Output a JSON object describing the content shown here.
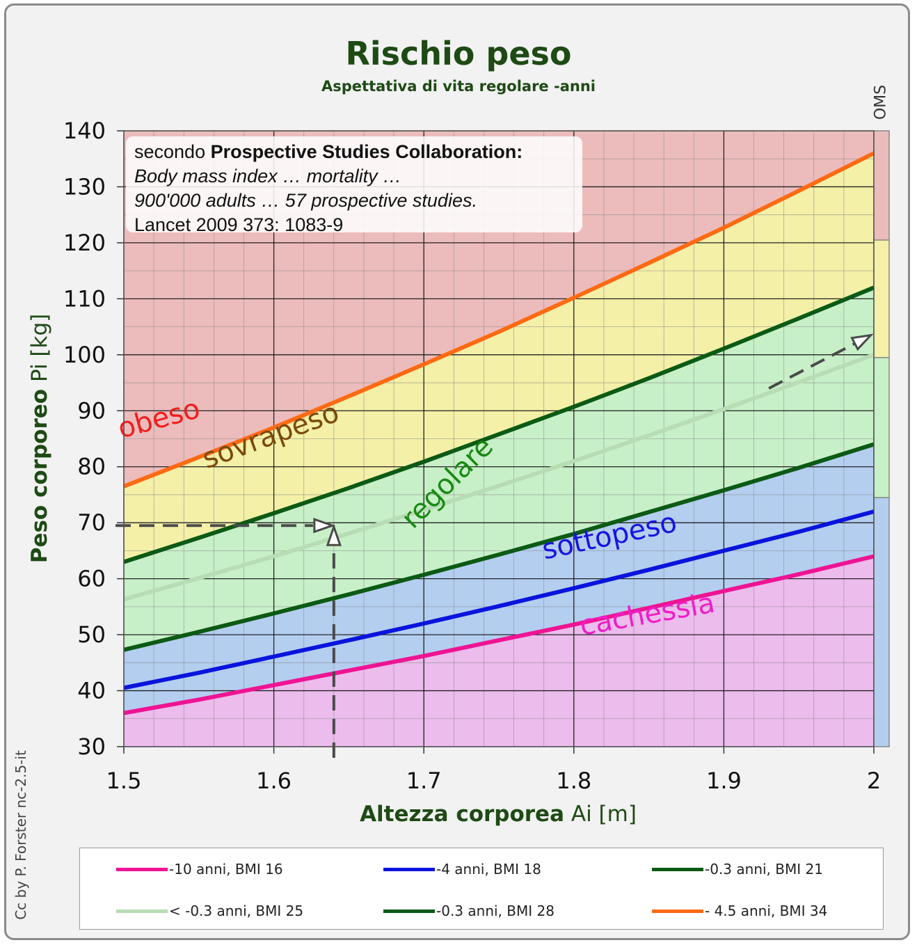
{
  "title": "Rischio peso",
  "subtitle": "Aspettativa di vita regolare -anni",
  "y_axis": {
    "bold": "Peso corporeo",
    "light": "Pi [kg]"
  },
  "x_axis": {
    "bold": "Altezza corporea",
    "light": "Ai [m]"
  },
  "credit": "Cc by P. Forster nc-2.5-it",
  "oms_label": "OMS",
  "source": {
    "prefix": "secondo ",
    "bold": "Prospective Studies Collaboration:",
    "line2": "Body mass index … mortality …",
    "line3": "900'000 adults … 57 prospective studies.",
    "line4": "Lancet 2009 373: 1083-9"
  },
  "legend": [
    {
      "label": "-10 anni, BMI 16",
      "color": "#ee1493"
    },
    {
      "label": "-4 anni, BMI 18",
      "color": "#0a14dc"
    },
    {
      "label": "-0.3 anni, BMI 21",
      "color": "#0c5a14"
    },
    {
      "label": "< -0.3 anni, BMI 25",
      "color": "#b8dcb4"
    },
    {
      "label": "-0.3 anni, BMI 28",
      "color": "#0c5a14"
    },
    {
      "label": "- 4.5 anni, BMI 34",
      "color": "#ff6a14"
    }
  ],
  "chart_data": {
    "type": "line",
    "xlim": [
      1.5,
      2.0
    ],
    "ylim": [
      30,
      140
    ],
    "x_ticks": [
      "1.5",
      "1.6",
      "1.7",
      "1.8",
      "1.9",
      "2"
    ],
    "y_ticks": [
      "30",
      "40",
      "50",
      "60",
      "70",
      "80",
      "90",
      "100",
      "110",
      "120",
      "130",
      "140"
    ],
    "grid": true,
    "x": [
      1.5,
      1.55,
      1.6,
      1.65,
      1.7,
      1.75,
      1.8,
      1.85,
      1.9,
      1.95,
      2.0
    ],
    "series": [
      {
        "name": "-10 anni, BMI 16",
        "bmi": 16,
        "color": "#ee1493",
        "values": [
          36.0,
          38.4,
          41.0,
          43.6,
          46.2,
          49.0,
          51.8,
          54.8,
          57.8,
          60.8,
          64.0
        ]
      },
      {
        "name": "-4 anni, BMI 18",
        "bmi": 18,
        "color": "#0a14dc",
        "values": [
          40.5,
          43.2,
          46.1,
          49.0,
          52.0,
          55.1,
          58.3,
          61.6,
          65.0,
          68.4,
          72.0
        ]
      },
      {
        "name": "-0.3 anni, BMI 21",
        "bmi": 21,
        "color": "#0c5a14",
        "values": [
          47.3,
          50.5,
          53.8,
          57.2,
          60.7,
          64.3,
          68.0,
          71.9,
          75.8,
          79.8,
          84.0
        ]
      },
      {
        "name": "< -0.3 anni, BMI 25",
        "bmi": 25,
        "color": "#b8dcb4",
        "values": [
          56.3,
          60.1,
          64.0,
          68.1,
          72.3,
          76.6,
          81.0,
          85.6,
          90.3,
          95.1,
          100.0
        ]
      },
      {
        "name": "-0.3 anni, BMI 28",
        "bmi": 28,
        "color": "#0c5a14",
        "values": [
          63.0,
          67.3,
          71.7,
          76.2,
          80.9,
          85.8,
          90.7,
          95.8,
          101.1,
          106.5,
          112.0
        ]
      },
      {
        "name": "- 4.5 anni, BMI 34",
        "bmi": 34,
        "color": "#ff6a14",
        "values": [
          76.5,
          81.7,
          87.0,
          92.6,
          98.3,
          104.1,
          110.2,
          116.4,
          122.7,
          129.3,
          136.0
        ]
      }
    ],
    "regions": [
      {
        "label": "cachessia",
        "color": "#ee1ec8",
        "fill": "#ecbcec",
        "below": 16,
        "label_x": 1.85,
        "label_y": 52,
        "label_angle": -10
      },
      {
        "label": "sottopeso",
        "color": "#1a14e0",
        "fill": "#b4cef0",
        "between": [
          16,
          21
        ],
        "label_x": 1.825,
        "label_y": 66,
        "label_angle": -12
      },
      {
        "label": "regolare",
        "color": "#1a8a14",
        "fill": "#c8f0c8",
        "between": [
          21,
          28
        ],
        "label_x": 1.72,
        "label_y": 76,
        "label_angle": -45
      },
      {
        "label": "sovrapeso",
        "color": "#7a4a0c",
        "fill": "#f4f0a8",
        "between": [
          28,
          34
        ],
        "label_x": 1.6,
        "label_y": 84,
        "label_angle": -20
      },
      {
        "label": "obeso",
        "color": "#f01e1e",
        "fill": "#ecbcbc",
        "above": 34,
        "label_x": 1.525,
        "label_y": 87,
        "label_angle": -15
      }
    ],
    "oms_bands": [
      {
        "from": 30,
        "to": 74.5,
        "color": "#b4cef0"
      },
      {
        "from": 74.5,
        "to": 99.5,
        "color": "#c8f0c8"
      },
      {
        "from": 99.5,
        "to": 120.5,
        "color": "#f4f0a8"
      },
      {
        "from": 120.5,
        "to": 140,
        "color": "#ecbcbc"
      }
    ],
    "example": {
      "height": 1.64,
      "weight": 69.5,
      "arrow_to_oms": {
        "from": [
          1.93,
          94
        ],
        "to": [
          1.998,
          103.5
        ]
      }
    }
  }
}
